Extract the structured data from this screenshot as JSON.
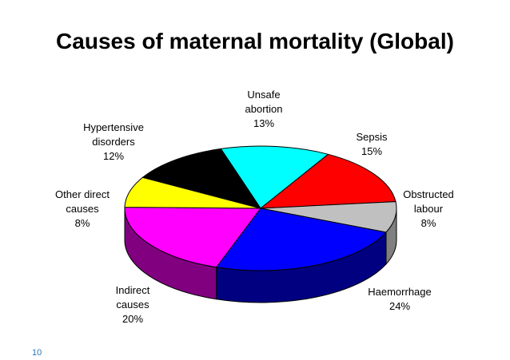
{
  "title": "Causes of maternal mortality (Global)",
  "page_number": "10",
  "chart_data": {
    "type": "pie",
    "title": "Causes of maternal mortality (Global)",
    "slices": [
      {
        "label_lines": [
          "Unsafe",
          "abortion"
        ],
        "value": 13,
        "value_label": "13%",
        "color": "#00ffff",
        "side_color": "#008080"
      },
      {
        "label_lines": [
          "Sepsis"
        ],
        "value": 15,
        "value_label": "15%",
        "color": "#ff0000",
        "side_color": "#800000"
      },
      {
        "label_lines": [
          "Obstructed",
          "labour"
        ],
        "value": 8,
        "value_label": "8%",
        "color": "#c0c0c0",
        "side_color": "#808080"
      },
      {
        "label_lines": [
          "Haemorrhage"
        ],
        "value": 24,
        "value_label": "24%",
        "color": "#0000ff",
        "side_color": "#000080"
      },
      {
        "label_lines": [
          "Indirect",
          "causes"
        ],
        "value": 20,
        "value_label": "20%",
        "color": "#ff00ff",
        "side_color": "#800080"
      },
      {
        "label_lines": [
          "Other direct",
          "causes"
        ],
        "value": 8,
        "value_label": "8%",
        "color": "#ffff00",
        "side_color": "#808000"
      },
      {
        "label_lines": [
          "Hypertensive",
          "disorders"
        ],
        "value": 12,
        "value_label": "12%",
        "color": "#000000",
        "side_color": "#000000"
      }
    ]
  }
}
